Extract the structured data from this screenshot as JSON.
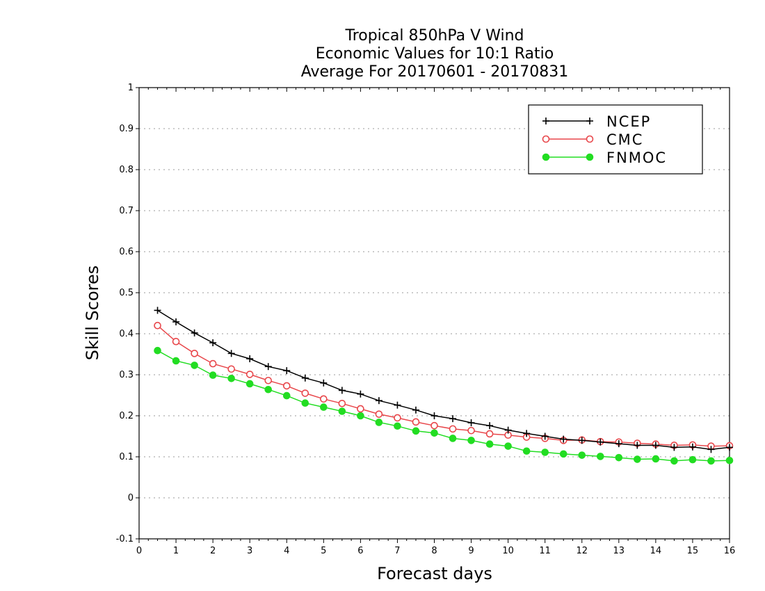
{
  "chart_data": {
    "type": "line",
    "title_lines": [
      "Tropical 850hPa V Wind",
      "Economic Values for 10:1 Ratio",
      "Average For 20170601 - 20170831"
    ],
    "xlabel": "Forecast days",
    "ylabel": "Skill Scores",
    "xlim": [
      0,
      16
    ],
    "ylim": [
      -0.1,
      1
    ],
    "x_ticks": [
      0,
      1,
      2,
      3,
      4,
      5,
      6,
      7,
      8,
      9,
      10,
      11,
      12,
      13,
      14,
      15,
      16
    ],
    "x_tick_labels": [
      "0",
      "1",
      "2",
      "3",
      "4",
      "5",
      "6",
      "7",
      "8",
      "9",
      "10",
      "11",
      "12",
      "13",
      "14",
      "15",
      "16"
    ],
    "y_ticks": [
      -0.1,
      0,
      0.1,
      0.2,
      0.3,
      0.4,
      0.5,
      0.6,
      0.7,
      0.8,
      0.9,
      1
    ],
    "y_tick_labels": [
      "-0.1",
      "0",
      "0.1",
      "0.2",
      "0.3",
      "0.4",
      "0.5",
      "0.6",
      "0.7",
      "0.8",
      "0.9",
      "1"
    ],
    "grid": "horizontal-dotted",
    "legend_position": "top-right",
    "x": [
      0.5,
      1,
      1.5,
      2,
      2.5,
      3,
      3.5,
      4,
      4.5,
      5,
      5.5,
      6,
      6.5,
      7,
      7.5,
      8,
      8.5,
      9,
      9.5,
      10,
      10.5,
      11,
      11.5,
      12,
      12.5,
      13,
      13.5,
      14,
      14.5,
      15,
      15.5,
      16
    ],
    "series": [
      {
        "name": "NCEP",
        "color": "#000000",
        "marker": "plus",
        "values": [
          0.457,
          0.429,
          0.402,
          0.378,
          0.352,
          0.339,
          0.32,
          0.31,
          0.292,
          0.28,
          0.262,
          0.253,
          0.237,
          0.226,
          0.214,
          0.2,
          0.193,
          0.183,
          0.176,
          0.165,
          0.157,
          0.15,
          0.143,
          0.14,
          0.136,
          0.132,
          0.128,
          0.128,
          0.123,
          0.124,
          0.118,
          0.123
        ]
      },
      {
        "name": "CMC",
        "color": "#e8474b",
        "marker": "open-circle",
        "values": [
          0.42,
          0.381,
          0.352,
          0.327,
          0.314,
          0.301,
          0.286,
          0.273,
          0.255,
          0.241,
          0.23,
          0.217,
          0.204,
          0.195,
          0.185,
          0.176,
          0.168,
          0.164,
          0.156,
          0.153,
          0.148,
          0.145,
          0.14,
          0.141,
          0.137,
          0.136,
          0.133,
          0.131,
          0.128,
          0.129,
          0.126,
          0.127
        ]
      },
      {
        "name": "FNMOC",
        "color": "#22dd22",
        "marker": "filled-circle",
        "values": [
          0.359,
          0.334,
          0.323,
          0.299,
          0.291,
          0.278,
          0.264,
          0.249,
          0.231,
          0.221,
          0.211,
          0.2,
          0.184,
          0.175,
          0.163,
          0.158,
          0.145,
          0.14,
          0.131,
          0.126,
          0.114,
          0.111,
          0.107,
          0.104,
          0.101,
          0.098,
          0.094,
          0.095,
          0.09,
          0.093,
          0.09,
          0.091
        ]
      }
    ]
  }
}
